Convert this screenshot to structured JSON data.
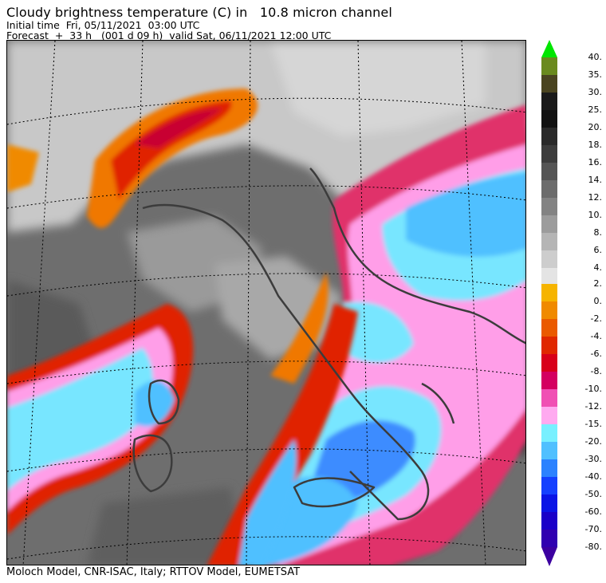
{
  "header": {
    "title": "Cloudy brightness temperature (C) in   10.8 micron channel",
    "initial_time": "Initial time  Fri, 05/11/2021  03:00 UTC",
    "forecast": "Forecast  +  33 h   (001 d 09 h)  valid Sat, 06/11/2021 12:00 UTC"
  },
  "footer": {
    "credit": "Moloch Model, CNR-ISAC, Italy; RTTOV Model, EUMETSAT"
  },
  "legend": {
    "top_arrow_color": "#00e600",
    "bottom_arrow_color": "#3c00a0",
    "warm_items": [
      {
        "label": "40.",
        "color": "#6a8a1e"
      },
      {
        "label": "35.",
        "color": "#4a4420"
      },
      {
        "label": "30.",
        "color": "#1a1a1a"
      },
      {
        "label": "25.",
        "color": "#111111"
      },
      {
        "label": "20.",
        "color": "#2a2a2a"
      },
      {
        "label": "18.",
        "color": "#3d3d3d"
      },
      {
        "label": "16.",
        "color": "#555555"
      },
      {
        "label": "14.",
        "color": "#6c6c6c"
      },
      {
        "label": "12.",
        "color": "#838383"
      },
      {
        "label": "10.",
        "color": "#9c9c9c"
      },
      {
        "label": "8.",
        "color": "#b5b5b5"
      },
      {
        "label": "6.",
        "color": "#cdcdcd"
      },
      {
        "label": "4.",
        "color": "#e4e4e4"
      }
    ],
    "cold_items": [
      {
        "label": "2.",
        "color": "#f6b400"
      },
      {
        "label": "0.",
        "color": "#f08a00"
      },
      {
        "label": "-2.",
        "color": "#ea5a00"
      },
      {
        "label": "-4.",
        "color": "#e02800"
      },
      {
        "label": "-6.",
        "color": "#d8001a"
      },
      {
        "label": "-8.",
        "color": "#d40060"
      },
      {
        "label": "-10.",
        "color": "#f050b4"
      },
      {
        "label": "-12.",
        "color": "#ffaaf0"
      },
      {
        "label": "-15.",
        "color": "#78f0ff"
      },
      {
        "label": "-20.",
        "color": "#50c0ff"
      },
      {
        "label": "-30.",
        "color": "#2c82ff"
      },
      {
        "label": "-40.",
        "color": "#1440ff"
      },
      {
        "label": "-50.",
        "color": "#0a14e6"
      },
      {
        "label": "-60.",
        "color": "#1a00c8"
      },
      {
        "label": "-70.",
        "color": "#3000b0"
      },
      {
        "label": "-80.",
        "color": ""
      }
    ]
  }
}
